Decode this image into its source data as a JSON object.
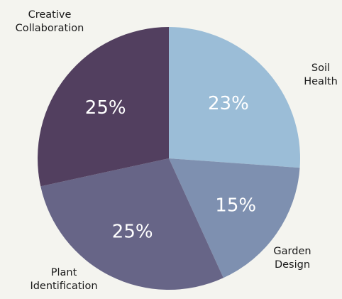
{
  "chart_data": {
    "type": "pie",
    "title": "",
    "slices": [
      {
        "label_lines": [
          "Soil",
          "Health"
        ],
        "value": 23,
        "value_label": "23%",
        "color": "#9bbdd7"
      },
      {
        "label_lines": [
          "Garden",
          "Design"
        ],
        "value": 15,
        "value_label": "15%",
        "color": "#7e90b0"
      },
      {
        "label_lines": [
          "Plant",
          "Identification"
        ],
        "value": 25,
        "value_label": "25%",
        "color": "#676587"
      },
      {
        "label_lines": [
          "Creative",
          "Collaboration"
        ],
        "value": 25,
        "value_label": "25%",
        "color": "#523f5f"
      }
    ],
    "start_angle_deg": 0,
    "direction": "clockwise",
    "legend": "none"
  }
}
